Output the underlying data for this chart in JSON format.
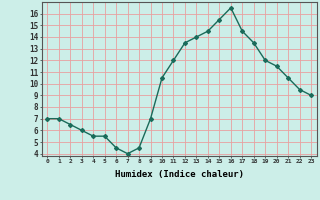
{
  "x": [
    0,
    1,
    2,
    3,
    4,
    5,
    6,
    7,
    8,
    9,
    10,
    11,
    12,
    13,
    14,
    15,
    16,
    17,
    18,
    19,
    20,
    21,
    22,
    23
  ],
  "y": [
    7,
    7,
    6.5,
    6,
    5.5,
    5.5,
    4.5,
    4,
    4.5,
    7,
    10.5,
    12,
    13.5,
    14,
    14.5,
    15.5,
    16.5,
    14.5,
    13.5,
    12,
    11.5,
    10.5,
    9.5,
    9
  ],
  "xlabel": "Humidex (Indice chaleur)",
  "ylim": [
    3.8,
    17.0
  ],
  "xlim": [
    -0.5,
    23.5
  ],
  "yticks": [
    4,
    5,
    6,
    7,
    8,
    9,
    10,
    11,
    12,
    13,
    14,
    15,
    16
  ],
  "xtick_labels": [
    "0",
    "1",
    "2",
    "3",
    "4",
    "5",
    "6",
    "7",
    "8",
    "9",
    "10",
    "11",
    "12",
    "13",
    "14",
    "15",
    "16",
    "17",
    "18",
    "19",
    "20",
    "21",
    "22",
    "23"
  ],
  "line_color": "#1a6b5a",
  "bg_color": "#cceee8",
  "grid_color": "#e8a0a0",
  "marker": "D",
  "markersize": 2.0,
  "linewidth": 1.0
}
